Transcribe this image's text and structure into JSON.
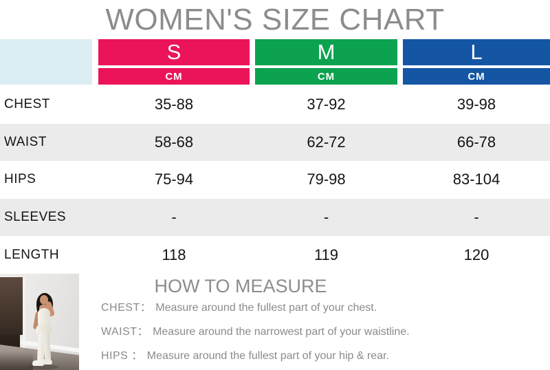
{
  "title": "WOMEN'S SIZE CHART",
  "colors": {
    "size_s": "#EC1459",
    "size_m": "#0DA24F",
    "size_l": "#1456A4",
    "corner_bg": "#DCEDF3",
    "alt_row_bg": "#EBEBEB",
    "heading_gray": "#8C8C8C"
  },
  "table": {
    "unit_label": "CM",
    "sizes": [
      "S",
      "M",
      "L"
    ],
    "rows": [
      {
        "label": "CHEST",
        "values": [
          "35-88",
          "37-92",
          "39-98"
        ]
      },
      {
        "label": "WAIST",
        "values": [
          "58-68",
          "62-72",
          "66-78"
        ]
      },
      {
        "label": "HIPS",
        "values": [
          "75-94",
          "79-98",
          "83-104"
        ]
      },
      {
        "label": "SLEEVES",
        "values": [
          "-",
          "-",
          "-"
        ]
      },
      {
        "label": "LENGTH",
        "values": [
          "118",
          "119",
          "120"
        ]
      }
    ]
  },
  "how_to": {
    "title": "HOW TO MEASURE",
    "items": [
      {
        "label": "CHEST：",
        "text": "Measure around the fullest part of your chest."
      },
      {
        "label": "WAIST：",
        "text": "Measure around the narrowest part of your waistline."
      },
      {
        "label": "HIPS ：",
        "text": "Measure around the fullest part of your hip & rear."
      }
    ]
  }
}
